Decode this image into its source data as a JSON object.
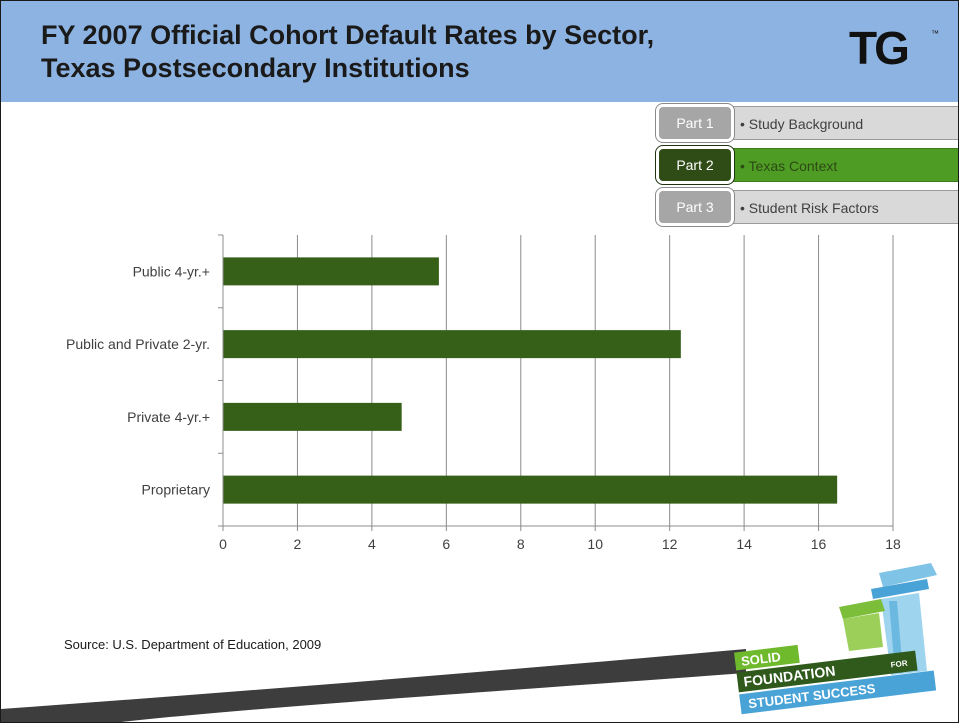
{
  "slide": {
    "title_line1": "FY 2007 Official Cohort Default Rates by Sector,",
    "title_line2": "Texas Postsecondary Institutions",
    "logo_text": "TG",
    "logo_tm": "™",
    "source": "Source: U.S. Department of Education, 2009"
  },
  "nav": {
    "items": [
      {
        "part": "Part 1",
        "label": "• Study Background",
        "active": false
      },
      {
        "part": "Part 2",
        "label": "• Texas Context",
        "active": true
      },
      {
        "part": "Part 3",
        "label": "• Student Risk Factors",
        "active": false
      }
    ]
  },
  "footer_logo": {
    "line1": "SOLID",
    "line2": "FOUNDATION",
    "line2_small": "FOR",
    "line3": "STUDENT SUCCESS"
  },
  "colors": {
    "header": "#8db3e2",
    "bar": "#365f17",
    "nav_active": "#4f9c25",
    "nav_active_part": "#2f4c17",
    "nav_inactive": "#d9d9d9",
    "nav_inactive_part": "#a6a6a6"
  },
  "chart_data": {
    "type": "bar",
    "orientation": "horizontal",
    "categories": [
      "Public 4-yr.+",
      "Public and Private 2-yr.",
      "Private 4-yr.+",
      "Proprietary"
    ],
    "values": [
      5.8,
      12.3,
      4.8,
      16.5
    ],
    "xlim": [
      0,
      18
    ],
    "xticks": [
      0,
      2,
      4,
      6,
      8,
      10,
      12,
      14,
      16,
      18
    ],
    "grid": "vertical",
    "legend": "none"
  }
}
